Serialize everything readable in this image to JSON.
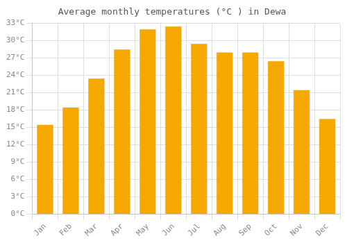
{
  "chart_data": {
    "type": "bar",
    "title": "Average monthly temperatures (°C ) in Dewa",
    "categories": [
      "Jan",
      "Feb",
      "Mar",
      "Apr",
      "May",
      "Jun",
      "Jul",
      "Aug",
      "Sep",
      "Oct",
      "Nov",
      "Dec"
    ],
    "values": [
      15.5,
      18.5,
      23.5,
      28.5,
      32.0,
      32.5,
      29.5,
      28.0,
      28.0,
      26.5,
      21.5,
      16.5
    ],
    "color": "#F5A800",
    "ylim": [
      0,
      33
    ],
    "yticks": [
      {
        "value": 0,
        "label": "0°C"
      },
      {
        "value": 3,
        "label": "3°C"
      },
      {
        "value": 6,
        "label": "6°C"
      },
      {
        "value": 9,
        "label": "9°C"
      },
      {
        "value": 12,
        "label": "12°C"
      },
      {
        "value": 15,
        "label": "15°C"
      },
      {
        "value": 18,
        "label": "18°C"
      },
      {
        "value": 21,
        "label": "21°C"
      },
      {
        "value": 24,
        "label": "24°C"
      },
      {
        "value": 27,
        "label": "27°C"
      },
      {
        "value": 30,
        "label": "30°C"
      },
      {
        "value": 33,
        "label": "33°C"
      }
    ],
    "grid": true
  }
}
